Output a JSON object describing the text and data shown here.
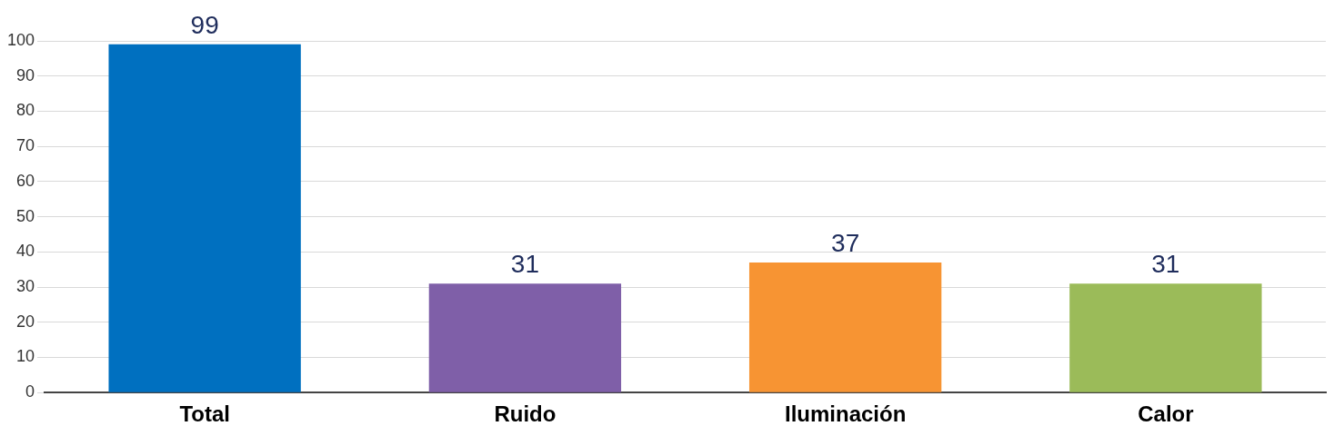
{
  "chart_data": {
    "type": "bar",
    "categories": [
      "Total",
      "Ruido",
      "Iluminación",
      "Calor"
    ],
    "values": [
      99,
      31,
      37,
      31
    ],
    "colors": [
      "#0070c0",
      "#7f5fa8",
      "#f79433",
      "#9bbb59"
    ],
    "ylim": [
      0,
      100
    ],
    "yticks": [
      0,
      10,
      20,
      30,
      40,
      50,
      60,
      70,
      80,
      90,
      100
    ],
    "grid": "y",
    "data_labels": true
  }
}
